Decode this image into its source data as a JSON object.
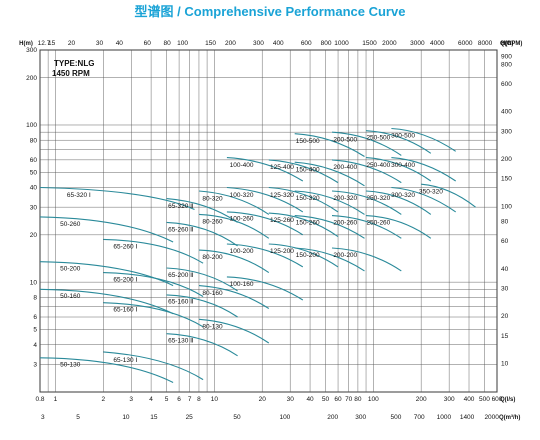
{
  "chart_data": {
    "type": "line",
    "title": "型谱图 / Comprehensive Performance Curve",
    "title_color": "#1aa3d6",
    "curve_color": "#2a8a9a",
    "grid_color": "#555555",
    "type_label": "TYPE:NLG",
    "speed_label": "1450 RPM",
    "x_scale": "log",
    "y_scale": "log",
    "grid": true,
    "xlim": [
      0.8,
      600
    ],
    "ylim": [
      2,
      300
    ],
    "left_axis": {
      "unit": "H(m)",
      "ticks": [
        "300",
        "200",
        "100",
        "80",
        "60",
        "50",
        "40",
        "30",
        "20",
        "10",
        "8",
        "6",
        "5",
        "4",
        "3"
      ]
    },
    "right_axis": {
      "unit": "H(ft)",
      "ticks": [
        "900",
        "800",
        "600",
        "400",
        "300",
        "200",
        "150",
        "100",
        "80",
        "60",
        "40",
        "30",
        "20",
        "15",
        "10"
      ]
    },
    "top_axis": {
      "first_tick": "12.7",
      "ticks": [
        "15",
        "20",
        "30",
        "40",
        "60",
        "80",
        "100",
        "150",
        "200",
        "300",
        "400",
        "600",
        "800",
        "1000",
        "1500",
        "2000",
        "3000",
        "4000",
        "6000",
        "8000"
      ],
      "unit": "Q(GPM)"
    },
    "bottom_axis": {
      "ticks": [
        "0.8",
        "1",
        "2",
        "3",
        "4",
        "5",
        "6",
        "7",
        "8",
        "10",
        "20",
        "30",
        "40",
        "50",
        "60",
        "70",
        "80",
        "100",
        "200",
        "300",
        "400",
        "500",
        "600"
      ],
      "unit": "Q(l/s)"
    },
    "bottom_axis2": {
      "ticks": [
        "3",
        "5",
        "10",
        "15",
        "25",
        "50",
        "100",
        "200",
        "300",
        "500",
        "700",
        "1000",
        "1400",
        "2000"
      ],
      "unit": "Q(m³/h)"
    },
    "curves": [
      {
        "name": "50-130",
        "x": [
          0.8,
          2.8,
          5.5
        ],
        "y": [
          3.3,
          3.2,
          2.3
        ]
      },
      {
        "name": "50-160",
        "x": [
          0.8,
          2.8,
          5.5
        ],
        "y": [
          9,
          8.7,
          6.3
        ]
      },
      {
        "name": "50-200",
        "x": [
          0.8,
          2.8,
          5.5
        ],
        "y": [
          13.5,
          13,
          9.5
        ]
      },
      {
        "name": "50-260",
        "x": [
          0.8,
          2.8,
          5.5
        ],
        "y": [
          26,
          25,
          18
        ]
      },
      {
        "name": "65-320 Ⅰ",
        "x": [
          0.8,
          4,
          7.5
        ],
        "y": [
          40,
          38,
          29
        ]
      },
      {
        "name": "65-130 Ⅰ",
        "x": [
          2,
          5,
          8.5
        ],
        "y": [
          3.6,
          3.3,
          2.4
        ]
      },
      {
        "name": "65-160 Ⅰ",
        "x": [
          2,
          5,
          8.5
        ],
        "y": [
          7.4,
          7.1,
          5.2
        ]
      },
      {
        "name": "65-200 Ⅰ",
        "x": [
          2,
          5,
          8.5
        ],
        "y": [
          11.5,
          11.1,
          8.1
        ]
      },
      {
        "name": "65-260 Ⅰ",
        "x": [
          2,
          5,
          8.5
        ],
        "y": [
          18.7,
          18,
          13.2
        ]
      },
      {
        "name": "65-320 Ⅱ",
        "x": [
          5,
          9,
          14
        ],
        "y": [
          34,
          32,
          24
        ]
      },
      {
        "name": "65-260 Ⅱ",
        "x": [
          5,
          9,
          14
        ],
        "y": [
          24,
          23,
          17
        ]
      },
      {
        "name": "65-200 Ⅱ",
        "x": [
          5,
          9,
          14
        ],
        "y": [
          12.3,
          11.8,
          8.8
        ]
      },
      {
        "name": "65-160 Ⅱ",
        "x": [
          5,
          9,
          14
        ],
        "y": [
          8.3,
          8,
          6
        ]
      },
      {
        "name": "65-130 Ⅱ",
        "x": [
          5,
          9,
          14
        ],
        "y": [
          4.7,
          4.5,
          3.4
        ]
      },
      {
        "name": "80-320",
        "x": [
          8,
          14,
          22
        ],
        "y": [
          38,
          36,
          27
        ]
      },
      {
        "name": "80-260",
        "x": [
          8,
          14,
          22
        ],
        "y": [
          27,
          26,
          19
        ]
      },
      {
        "name": "80-200",
        "x": [
          8,
          14,
          22
        ],
        "y": [
          16,
          15.5,
          11.5
        ]
      },
      {
        "name": "80-160",
        "x": [
          8,
          14,
          22
        ],
        "y": [
          9.5,
          9,
          6.8
        ]
      },
      {
        "name": "80-130",
        "x": [
          8,
          14,
          22
        ],
        "y": [
          5.8,
          5.5,
          4.1
        ]
      },
      {
        "name": "100-400",
        "x": [
          12,
          22,
          36
        ],
        "y": [
          62,
          59,
          44
        ]
      },
      {
        "name": "100-320",
        "x": [
          12,
          22,
          36
        ],
        "y": [
          40,
          38,
          28
        ]
      },
      {
        "name": "100-260",
        "x": [
          12,
          22,
          36
        ],
        "y": [
          28,
          27,
          20
        ]
      },
      {
        "name": "100-200",
        "x": [
          12,
          22,
          36
        ],
        "y": [
          17.5,
          16.8,
          12.5
        ]
      },
      {
        "name": "100-160",
        "x": [
          12,
          22,
          36
        ],
        "y": [
          10.8,
          10.4,
          7.7
        ]
      },
      {
        "name": "125-400",
        "x": [
          22,
          38,
          60
        ],
        "y": [
          60,
          57,
          43
        ]
      },
      {
        "name": "125-320",
        "x": [
          22,
          38,
          60
        ],
        "y": [
          40,
          38,
          28
        ]
      },
      {
        "name": "125-260",
        "x": [
          22,
          38,
          60
        ],
        "y": [
          27.5,
          26.5,
          19.5
        ]
      },
      {
        "name": "125-200",
        "x": [
          22,
          38,
          60
        ],
        "y": [
          17.5,
          16.8,
          12.5
        ]
      },
      {
        "name": "150-500",
        "x": [
          32,
          55,
          88
        ],
        "y": [
          88,
          84,
          63
        ]
      },
      {
        "name": "150-400",
        "x": [
          32,
          55,
          88
        ],
        "y": [
          58,
          55,
          41
        ]
      },
      {
        "name": "150-320",
        "x": [
          32,
          55,
          88
        ],
        "y": [
          38,
          36.5,
          27
        ]
      },
      {
        "name": "150-260",
        "x": [
          32,
          55,
          88
        ],
        "y": [
          26.5,
          25.5,
          19
        ]
      },
      {
        "name": "150-200",
        "x": [
          32,
          55,
          88
        ],
        "y": [
          16.5,
          15.8,
          11.8
        ]
      },
      {
        "name": "200-500",
        "x": [
          55,
          95,
          150
        ],
        "y": [
          90,
          86,
          64
        ]
      },
      {
        "name": "200-400",
        "x": [
          55,
          95,
          150
        ],
        "y": [
          60,
          57,
          43
        ]
      },
      {
        "name": "200-320",
        "x": [
          55,
          95,
          150
        ],
        "y": [
          38,
          36.5,
          27
        ]
      },
      {
        "name": "200-260",
        "x": [
          55,
          95,
          150
        ],
        "y": [
          26.5,
          25.5,
          19
        ]
      },
      {
        "name": "200-200",
        "x": [
          55,
          95,
          150
        ],
        "y": [
          16.5,
          15.8,
          11.8
        ]
      },
      {
        "name": "250-500",
        "x": [
          90,
          150,
          230
        ],
        "y": [
          92,
          88,
          66
        ]
      },
      {
        "name": "250-400",
        "x": [
          90,
          150,
          230
        ],
        "y": [
          62,
          59,
          44
        ]
      },
      {
        "name": "250-320",
        "x": [
          90,
          150,
          230
        ],
        "y": [
          38,
          36.5,
          27
        ]
      },
      {
        "name": "250-260",
        "x": [
          90,
          150,
          230
        ],
        "y": [
          26.5,
          25.5,
          19
        ]
      },
      {
        "name": "300-500",
        "x": [
          130,
          210,
          330
        ],
        "y": [
          95,
          91,
          68
        ]
      },
      {
        "name": "300-400",
        "x": [
          130,
          210,
          330
        ],
        "y": [
          62,
          59,
          44
        ]
      },
      {
        "name": "300-320",
        "x": [
          130,
          210,
          330
        ],
        "y": [
          40,
          38,
          28
        ]
      },
      {
        "name": "350-320",
        "x": [
          200,
          300,
          440
        ],
        "y": [
          42,
          40,
          30
        ]
      }
    ]
  }
}
